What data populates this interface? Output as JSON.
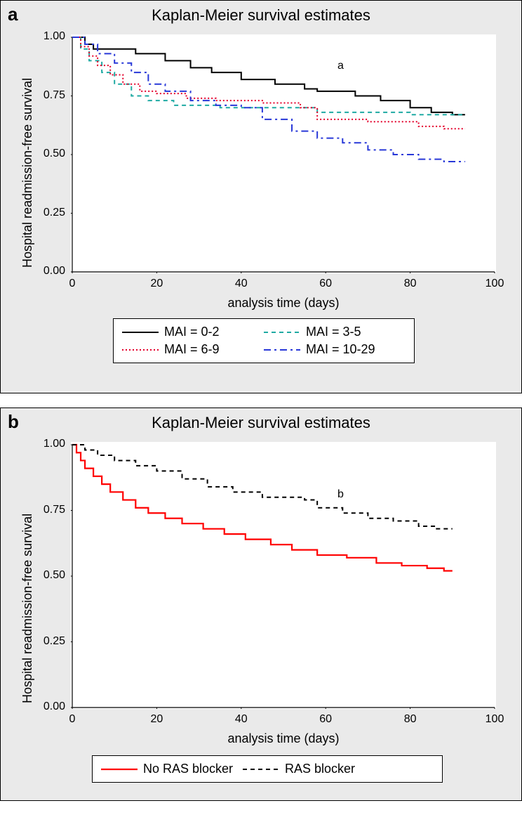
{
  "panel_a": {
    "letter": "a",
    "title": "Kaplan-Meier survival estimates",
    "in_plot_letter": "a",
    "ylabel": "Hospital readmission-free survival",
    "xlabel": "analysis time (days)",
    "xlim": [
      0,
      100
    ],
    "ylim": [
      0,
      1.0
    ],
    "xticks": [
      0,
      20,
      40,
      60,
      80,
      100
    ],
    "yticks": [
      0.0,
      0.25,
      0.5,
      0.75,
      1.0
    ],
    "ytick_labels": [
      "0.00",
      "0.25",
      "0.50",
      "0.75",
      "1.00"
    ],
    "series": [
      {
        "label": "MAI = 0-2",
        "color": "#000000",
        "dash": "",
        "width": 2,
        "points": [
          [
            0,
            1.0
          ],
          [
            3,
            1.0
          ],
          [
            3,
            0.97
          ],
          [
            5,
            0.97
          ],
          [
            5,
            0.95
          ],
          [
            15,
            0.95
          ],
          [
            15,
            0.93
          ],
          [
            22,
            0.93
          ],
          [
            22,
            0.9
          ],
          [
            28,
            0.9
          ],
          [
            28,
            0.87
          ],
          [
            33,
            0.87
          ],
          [
            33,
            0.85
          ],
          [
            40,
            0.85
          ],
          [
            40,
            0.82
          ],
          [
            48,
            0.82
          ],
          [
            48,
            0.8
          ],
          [
            55,
            0.8
          ],
          [
            55,
            0.78
          ],
          [
            58,
            0.78
          ],
          [
            58,
            0.77
          ],
          [
            67,
            0.77
          ],
          [
            67,
            0.75
          ],
          [
            73,
            0.75
          ],
          [
            73,
            0.73
          ],
          [
            80,
            0.73
          ],
          [
            80,
            0.7
          ],
          [
            85,
            0.7
          ],
          [
            85,
            0.68
          ],
          [
            90,
            0.68
          ],
          [
            90,
            0.67
          ],
          [
            93,
            0.67
          ]
        ]
      },
      {
        "label": "MAI = 3-5",
        "color": "#1faaa3",
        "dash": "6,5",
        "width": 2,
        "points": [
          [
            0,
            1.0
          ],
          [
            2,
            1.0
          ],
          [
            2,
            0.95
          ],
          [
            4,
            0.95
          ],
          [
            4,
            0.9
          ],
          [
            7,
            0.9
          ],
          [
            7,
            0.85
          ],
          [
            10,
            0.85
          ],
          [
            10,
            0.8
          ],
          [
            14,
            0.8
          ],
          [
            14,
            0.75
          ],
          [
            18,
            0.75
          ],
          [
            18,
            0.73
          ],
          [
            24,
            0.73
          ],
          [
            24,
            0.71
          ],
          [
            35,
            0.71
          ],
          [
            35,
            0.7
          ],
          [
            50,
            0.7
          ],
          [
            50,
            0.7
          ],
          [
            58,
            0.7
          ],
          [
            58,
            0.68
          ],
          [
            72,
            0.68
          ],
          [
            72,
            0.68
          ],
          [
            80,
            0.68
          ],
          [
            80,
            0.67
          ],
          [
            93,
            0.67
          ]
        ]
      },
      {
        "label": "MAI = 6-9",
        "color": "#e4002b",
        "dash": "2,3",
        "width": 2,
        "points": [
          [
            0,
            1.0
          ],
          [
            2,
            1.0
          ],
          [
            2,
            0.96
          ],
          [
            4,
            0.96
          ],
          [
            4,
            0.92
          ],
          [
            6,
            0.92
          ],
          [
            6,
            0.88
          ],
          [
            9,
            0.88
          ],
          [
            9,
            0.84
          ],
          [
            12,
            0.84
          ],
          [
            12,
            0.8
          ],
          [
            16,
            0.8
          ],
          [
            16,
            0.77
          ],
          [
            20,
            0.77
          ],
          [
            20,
            0.76
          ],
          [
            27,
            0.76
          ],
          [
            27,
            0.74
          ],
          [
            34,
            0.74
          ],
          [
            34,
            0.73
          ],
          [
            45,
            0.73
          ],
          [
            45,
            0.72
          ],
          [
            54,
            0.72
          ],
          [
            54,
            0.7
          ],
          [
            58,
            0.7
          ],
          [
            58,
            0.65
          ],
          [
            70,
            0.65
          ],
          [
            70,
            0.64
          ],
          [
            82,
            0.64
          ],
          [
            82,
            0.62
          ],
          [
            88,
            0.62
          ],
          [
            88,
            0.61
          ],
          [
            93,
            0.61
          ]
        ]
      },
      {
        "label": "MAI = 10-29",
        "color": "#2838d8",
        "dash": "10,5,3,5",
        "width": 2,
        "points": [
          [
            0,
            1.0
          ],
          [
            3,
            1.0
          ],
          [
            3,
            0.97
          ],
          [
            6,
            0.97
          ],
          [
            6,
            0.93
          ],
          [
            10,
            0.93
          ],
          [
            10,
            0.89
          ],
          [
            14,
            0.89
          ],
          [
            14,
            0.85
          ],
          [
            18,
            0.85
          ],
          [
            18,
            0.8
          ],
          [
            22,
            0.8
          ],
          [
            22,
            0.77
          ],
          [
            28,
            0.77
          ],
          [
            28,
            0.73
          ],
          [
            34,
            0.73
          ],
          [
            34,
            0.71
          ],
          [
            40,
            0.71
          ],
          [
            40,
            0.7
          ],
          [
            45,
            0.7
          ],
          [
            45,
            0.65
          ],
          [
            52,
            0.65
          ],
          [
            52,
            0.6
          ],
          [
            58,
            0.6
          ],
          [
            58,
            0.57
          ],
          [
            64,
            0.57
          ],
          [
            64,
            0.55
          ],
          [
            70,
            0.55
          ],
          [
            70,
            0.52
          ],
          [
            76,
            0.52
          ],
          [
            76,
            0.5
          ],
          [
            82,
            0.5
          ],
          [
            82,
            0.48
          ],
          [
            88,
            0.48
          ],
          [
            88,
            0.47
          ],
          [
            93,
            0.47
          ]
        ]
      }
    ],
    "legend": {
      "rows": [
        [
          0,
          1
        ],
        [
          2,
          3
        ]
      ]
    }
  },
  "panel_b": {
    "letter": "b",
    "title": "Kaplan-Meier survival estimates",
    "in_plot_letter": "b",
    "ylabel": "Hospital readmission-free survival",
    "xlabel": "analysis time (days)",
    "xlim": [
      0,
      100
    ],
    "ylim": [
      0,
      1.0
    ],
    "xticks": [
      0,
      20,
      40,
      60,
      80,
      100
    ],
    "yticks": [
      0.0,
      0.25,
      0.5,
      0.75,
      1.0
    ],
    "ytick_labels": [
      "0.00",
      "0.25",
      "0.50",
      "0.75",
      "1.00"
    ],
    "series": [
      {
        "label": "No RAS blocker",
        "color": "#ff0000",
        "dash": "",
        "width": 2.2,
        "points": [
          [
            0,
            1.0
          ],
          [
            1,
            1.0
          ],
          [
            1,
            0.97
          ],
          [
            2,
            0.97
          ],
          [
            2,
            0.94
          ],
          [
            3,
            0.94
          ],
          [
            3,
            0.91
          ],
          [
            5,
            0.91
          ],
          [
            5,
            0.88
          ],
          [
            7,
            0.88
          ],
          [
            7,
            0.85
          ],
          [
            9,
            0.85
          ],
          [
            9,
            0.82
          ],
          [
            12,
            0.82
          ],
          [
            12,
            0.79
          ],
          [
            15,
            0.79
          ],
          [
            15,
            0.76
          ],
          [
            18,
            0.76
          ],
          [
            18,
            0.74
          ],
          [
            22,
            0.74
          ],
          [
            22,
            0.72
          ],
          [
            26,
            0.72
          ],
          [
            26,
            0.7
          ],
          [
            31,
            0.7
          ],
          [
            31,
            0.68
          ],
          [
            36,
            0.68
          ],
          [
            36,
            0.66
          ],
          [
            41,
            0.66
          ],
          [
            41,
            0.64
          ],
          [
            47,
            0.64
          ],
          [
            47,
            0.62
          ],
          [
            52,
            0.62
          ],
          [
            52,
            0.6
          ],
          [
            58,
            0.6
          ],
          [
            58,
            0.58
          ],
          [
            65,
            0.58
          ],
          [
            65,
            0.57
          ],
          [
            72,
            0.57
          ],
          [
            72,
            0.55
          ],
          [
            78,
            0.55
          ],
          [
            78,
            0.54
          ],
          [
            84,
            0.54
          ],
          [
            84,
            0.53
          ],
          [
            88,
            0.53
          ],
          [
            88,
            0.52
          ],
          [
            90,
            0.52
          ]
        ]
      },
      {
        "label": "RAS blocker",
        "color": "#000000",
        "dash": "6,5",
        "width": 2,
        "points": [
          [
            0,
            1.0
          ],
          [
            3,
            1.0
          ],
          [
            3,
            0.98
          ],
          [
            6,
            0.98
          ],
          [
            6,
            0.96
          ],
          [
            10,
            0.96
          ],
          [
            10,
            0.94
          ],
          [
            15,
            0.94
          ],
          [
            15,
            0.92
          ],
          [
            20,
            0.92
          ],
          [
            20,
            0.9
          ],
          [
            26,
            0.9
          ],
          [
            26,
            0.87
          ],
          [
            32,
            0.87
          ],
          [
            32,
            0.84
          ],
          [
            38,
            0.84
          ],
          [
            38,
            0.82
          ],
          [
            45,
            0.82
          ],
          [
            45,
            0.8
          ],
          [
            55,
            0.8
          ],
          [
            55,
            0.79
          ],
          [
            58,
            0.79
          ],
          [
            58,
            0.76
          ],
          [
            64,
            0.76
          ],
          [
            64,
            0.74
          ],
          [
            70,
            0.74
          ],
          [
            70,
            0.72
          ],
          [
            76,
            0.72
          ],
          [
            76,
            0.71
          ],
          [
            82,
            0.71
          ],
          [
            82,
            0.69
          ],
          [
            86,
            0.69
          ],
          [
            86,
            0.68
          ],
          [
            90,
            0.68
          ]
        ]
      }
    ],
    "legend": {
      "rows": [
        [
          0,
          1
        ]
      ]
    }
  },
  "style": {
    "panel_bg": "#eaeaea",
    "plot_bg": "#ffffff",
    "axis_color": "#000000",
    "title_fontsize": 22,
    "label_fontsize": 18,
    "tick_fontsize": 16
  }
}
